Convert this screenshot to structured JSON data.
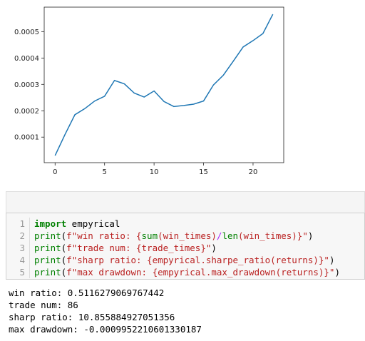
{
  "chart_data": {
    "type": "line",
    "x": [
      0,
      1,
      2,
      3,
      4,
      5,
      6,
      7,
      8,
      9,
      10,
      11,
      12,
      13,
      14,
      15,
      16,
      17,
      18,
      19,
      20,
      21,
      22
    ],
    "y": [
      3e-05,
      0.00011,
      0.000185,
      0.000208,
      0.000237,
      0.000255,
      0.000315,
      0.000302,
      0.000267,
      0.000252,
      0.000275,
      0.000235,
      0.000216,
      0.00022,
      0.000225,
      0.000237,
      0.000298,
      0.000335,
      0.000388,
      0.000442,
      0.000466,
      0.000493,
      0.000566
    ],
    "xticks": [
      0,
      5,
      10,
      15,
      20
    ],
    "xtick_labels": [
      "0",
      "5",
      "10",
      "15",
      "20"
    ],
    "yticks": [
      0.0001,
      0.0002,
      0.0003,
      0.0004,
      0.0005
    ],
    "ytick_labels": [
      "0.0001",
      "0.0002",
      "0.0003",
      "0.0004",
      "0.0005"
    ],
    "xlim": [
      -1.1,
      23.1
    ],
    "ylim": [
      3.2e-06,
      0.000593
    ],
    "color": "#1f77b4",
    "grid": false
  },
  "code": {
    "lines": [
      {
        "num": "1",
        "parts": [
          [
            "kw",
            "import"
          ],
          [
            "fn",
            " empyrical"
          ]
        ]
      },
      {
        "num": "2",
        "parts": [
          [
            "bi",
            "print"
          ],
          [
            "fn",
            "("
          ],
          [
            "str",
            "f\"win ratio: {"
          ],
          [
            "bi",
            "sum"
          ],
          [
            "str",
            "(win_times)"
          ],
          [
            "op",
            "/"
          ],
          [
            "bi",
            "len"
          ],
          [
            "str",
            "(win_times)}\""
          ],
          [
            "fn",
            ")"
          ]
        ]
      },
      {
        "num": "3",
        "parts": [
          [
            "bi",
            "print"
          ],
          [
            "fn",
            "("
          ],
          [
            "str",
            "f\"trade num: {trade_times}\""
          ],
          [
            "fn",
            ")"
          ]
        ]
      },
      {
        "num": "4",
        "parts": [
          [
            "bi",
            "print"
          ],
          [
            "fn",
            "("
          ],
          [
            "str",
            "f\"sharp ratio: {empyrical.sharpe_ratio(returns)}\""
          ],
          [
            "fn",
            ")"
          ]
        ]
      },
      {
        "num": "5",
        "parts": [
          [
            "bi",
            "print"
          ],
          [
            "fn",
            "("
          ],
          [
            "str",
            "f\"max drawdown: {empyrical.max_drawdown(returns)}\""
          ],
          [
            "fn",
            ")"
          ]
        ]
      }
    ]
  },
  "output": {
    "lines": [
      "win ratio: 0.5116279069767442",
      "trade num: 86",
      "sharp ratio: 10.855884927051356",
      "max drawdown: -0.0009952210601330187"
    ]
  }
}
